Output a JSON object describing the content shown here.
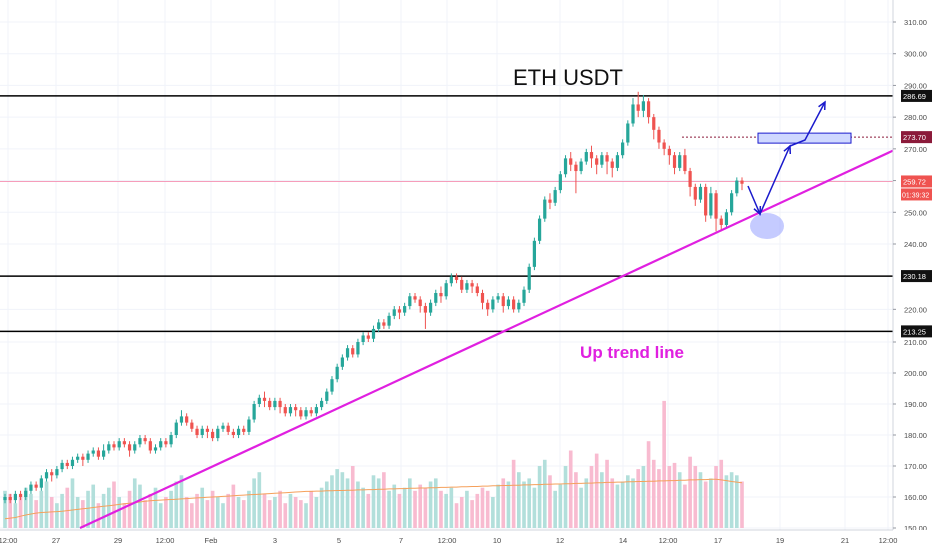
{
  "chart_data": {
    "type": "candlestick",
    "title": "ETH USDT",
    "annotation_label": "Up trend line",
    "ylim": [
      150,
      315
    ],
    "y_ticks": [
      150,
      160,
      170,
      180,
      190,
      200,
      210,
      220,
      240,
      250,
      260,
      270,
      280,
      290,
      300,
      310
    ],
    "x_labels": [
      "12:00",
      "27",
      "29",
      "12:00",
      "Feb",
      "3",
      "5",
      "7",
      "12:00",
      "10",
      "12",
      "14",
      "12:00",
      "17",
      "19",
      "21",
      "12:00"
    ],
    "price_labels": {
      "resistance_high": "286.69",
      "target": "273.70",
      "current": "259.72",
      "countdown": "01:39:32",
      "support_mid": "230.18",
      "support_low": "213.25"
    },
    "levels": {
      "resistance_high": 286.69,
      "target": 273.7,
      "current": 259.72,
      "support_mid": 230.18,
      "support_low": 213.25
    },
    "trend_line": {
      "from": [
        22,
        150
      ],
      "to": [
        130,
        267
      ]
    },
    "candles": [
      [
        159,
        160,
        158,
        161
      ],
      [
        160,
        159,
        158,
        161
      ],
      [
        159,
        161,
        158,
        162
      ],
      [
        161,
        160,
        159,
        162
      ],
      [
        160,
        162,
        159,
        163
      ],
      [
        162,
        164,
        161,
        165
      ],
      [
        164,
        163,
        162,
        165
      ],
      [
        163,
        166,
        162,
        167
      ],
      [
        166,
        168,
        165,
        169
      ],
      [
        168,
        167,
        165,
        169
      ],
      [
        167,
        169,
        166,
        170
      ],
      [
        169,
        171,
        168,
        172
      ],
      [
        171,
        170,
        169,
        172
      ],
      [
        170,
        172,
        169,
        173
      ],
      [
        172,
        173,
        171,
        174
      ],
      [
        173,
        172,
        170,
        174
      ],
      [
        172,
        174,
        171,
        175
      ],
      [
        174,
        175,
        173,
        176
      ],
      [
        175,
        173,
        172,
        176
      ],
      [
        173,
        175,
        172,
        177
      ],
      [
        175,
        177,
        174,
        178
      ],
      [
        177,
        176,
        175,
        178
      ],
      [
        176,
        178,
        175,
        179
      ],
      [
        178,
        177,
        176,
        179
      ],
      [
        177,
        175,
        173,
        178
      ],
      [
        175,
        177,
        174,
        178
      ],
      [
        177,
        179,
        176,
        180
      ],
      [
        179,
        178,
        177,
        180
      ],
      [
        178,
        175,
        174,
        179
      ],
      [
        175,
        176,
        174,
        177
      ],
      [
        176,
        178,
        175,
        179
      ],
      [
        178,
        177,
        176,
        179
      ],
      [
        177,
        180,
        176,
        181
      ],
      [
        180,
        184,
        179,
        185
      ],
      [
        184,
        186,
        183,
        188
      ],
      [
        186,
        184,
        183,
        187
      ],
      [
        184,
        182,
        181,
        185
      ],
      [
        182,
        180,
        179,
        183
      ],
      [
        180,
        182,
        179,
        183
      ],
      [
        182,
        181,
        179,
        183
      ],
      [
        181,
        179,
        178,
        182
      ],
      [
        179,
        182,
        178,
        183
      ],
      [
        182,
        183,
        181,
        184
      ],
      [
        183,
        181,
        180,
        184
      ],
      [
        181,
        180,
        179,
        182
      ],
      [
        180,
        182,
        179,
        183
      ],
      [
        182,
        181,
        180,
        183
      ],
      [
        181,
        185,
        180,
        186
      ],
      [
        185,
        190,
        184,
        191
      ],
      [
        190,
        192,
        189,
        193
      ],
      [
        192,
        191,
        189,
        194
      ],
      [
        191,
        189,
        188,
        192
      ],
      [
        189,
        191,
        188,
        192
      ],
      [
        191,
        189,
        187,
        192
      ],
      [
        189,
        187,
        186,
        190
      ],
      [
        187,
        189,
        186,
        190
      ],
      [
        189,
        188,
        186,
        190
      ],
      [
        188,
        186,
        185,
        189
      ],
      [
        186,
        188,
        185,
        189
      ],
      [
        188,
        187,
        186,
        189
      ],
      [
        187,
        189,
        186,
        190
      ],
      [
        189,
        191,
        188,
        192
      ],
      [
        191,
        194,
        190,
        195
      ],
      [
        194,
        198,
        193,
        199
      ],
      [
        198,
        202,
        197,
        203
      ],
      [
        202,
        205,
        201,
        206
      ],
      [
        205,
        208,
        204,
        209
      ],
      [
        208,
        206,
        205,
        209
      ],
      [
        206,
        210,
        205,
        211
      ],
      [
        210,
        212,
        209,
        213
      ],
      [
        212,
        211,
        210,
        213
      ],
      [
        211,
        214,
        210,
        215
      ],
      [
        214,
        216,
        213,
        217
      ],
      [
        216,
        215,
        214,
        217
      ],
      [
        215,
        218,
        214,
        219
      ],
      [
        218,
        220,
        217,
        221
      ],
      [
        220,
        219,
        217,
        221
      ],
      [
        219,
        221,
        218,
        222
      ],
      [
        221,
        224,
        220,
        225
      ],
      [
        224,
        223,
        222,
        225
      ],
      [
        223,
        221,
        219,
        224
      ],
      [
        221,
        219,
        214,
        222
      ],
      [
        219,
        222,
        218,
        223
      ],
      [
        222,
        225,
        221,
        226
      ],
      [
        225,
        224,
        222,
        227
      ],
      [
        224,
        228,
        223,
        229
      ],
      [
        228,
        230,
        227,
        231
      ],
      [
        230,
        229,
        228,
        231
      ],
      [
        229,
        226,
        225,
        230
      ],
      [
        226,
        228,
        225,
        229
      ],
      [
        228,
        227,
        225,
        229
      ],
      [
        227,
        225,
        224,
        228
      ],
      [
        225,
        222,
        220,
        226
      ],
      [
        222,
        220,
        218,
        223
      ],
      [
        220,
        223,
        219,
        224
      ],
      [
        223,
        224,
        222,
        225
      ],
      [
        224,
        221,
        219,
        225
      ],
      [
        221,
        223,
        220,
        224
      ],
      [
        223,
        220,
        219,
        224
      ],
      [
        220,
        222,
        219,
        223
      ],
      [
        222,
        226,
        221,
        227
      ],
      [
        226,
        233,
        225,
        234
      ],
      [
        233,
        241,
        232,
        242
      ],
      [
        241,
        248,
        240,
        249
      ],
      [
        248,
        254,
        247,
        255
      ],
      [
        254,
        253,
        251,
        256
      ],
      [
        253,
        257,
        252,
        258
      ],
      [
        257,
        262,
        256,
        263
      ],
      [
        262,
        267,
        261,
        268
      ],
      [
        267,
        265,
        263,
        269
      ],
      [
        265,
        263,
        256,
        266
      ],
      [
        263,
        266,
        262,
        267
      ],
      [
        266,
        269,
        265,
        270
      ],
      [
        269,
        267,
        264,
        271
      ],
      [
        267,
        265,
        262,
        268
      ],
      [
        265,
        268,
        264,
        269
      ],
      [
        268,
        266,
        262,
        269
      ],
      [
        266,
        264,
        261,
        267
      ],
      [
        264,
        268,
        263,
        269
      ],
      [
        268,
        272,
        267,
        273
      ],
      [
        272,
        278,
        271,
        279
      ],
      [
        278,
        284,
        277,
        286
      ],
      [
        284,
        282,
        280,
        288
      ],
      [
        282,
        285,
        280,
        287
      ],
      [
        285,
        280,
        278,
        286
      ],
      [
        280,
        276,
        273,
        281
      ],
      [
        276,
        272,
        270,
        277
      ],
      [
        272,
        270,
        268,
        273
      ],
      [
        270,
        268,
        265,
        271
      ],
      [
        268,
        264,
        262,
        269
      ],
      [
        264,
        268,
        263,
        269
      ],
      [
        268,
        263,
        262,
        270
      ],
      [
        263,
        258,
        255,
        264
      ],
      [
        258,
        254,
        252,
        259
      ],
      [
        254,
        258,
        253,
        259
      ],
      [
        258,
        249,
        247,
        259
      ],
      [
        249,
        256,
        248,
        258
      ],
      [
        256,
        248,
        244,
        257
      ],
      [
        248,
        246,
        244,
        249
      ],
      [
        246,
        250,
        245,
        251
      ],
      [
        250,
        256,
        249,
        257
      ],
      [
        256,
        260,
        255,
        261
      ],
      [
        260,
        259,
        257,
        261
      ]
    ],
    "volumes": [
      162,
      161,
      158,
      160,
      163,
      161,
      159,
      162,
      165,
      160,
      158,
      161,
      163,
      166,
      160,
      159,
      162,
      164,
      158,
      161,
      163,
      165,
      160,
      158,
      162,
      166,
      164,
      159,
      161,
      163,
      158,
      160,
      162,
      165,
      167,
      160,
      158,
      161,
      163,
      159,
      162,
      160,
      158,
      161,
      164,
      160,
      159,
      162,
      166,
      168,
      161,
      159,
      160,
      162,
      158,
      161,
      160,
      159,
      158,
      162,
      160,
      163,
      165,
      167,
      169,
      168,
      166,
      170,
      165,
      163,
      161,
      167,
      166,
      168,
      162,
      164,
      161,
      163,
      166,
      162,
      164,
      163,
      165,
      166,
      162,
      161,
      163,
      158,
      160,
      162,
      159,
      161,
      163,
      162,
      160,
      164,
      166,
      165,
      172,
      168,
      165,
      166,
      163,
      170,
      172,
      167,
      162,
      164,
      170,
      175,
      168,
      163,
      166,
      170,
      174,
      168,
      172,
      166,
      164,
      165,
      167,
      166,
      169,
      170,
      178,
      172,
      169,
      191,
      170,
      171,
      168,
      164,
      173,
      170,
      168,
      165,
      166,
      170,
      172,
      167,
      168,
      167,
      165
    ],
    "moving_average": [
      153,
      153.2,
      153.4,
      153.8,
      154.2,
      154.5,
      154.8,
      155,
      155.1,
      155.2,
      155.3,
      155.4,
      155.6,
      155.8,
      156,
      156.2,
      156.4,
      156.6,
      156.8,
      157,
      157.2,
      157.4,
      157.6,
      157.8,
      158,
      158.2,
      158.4,
      158.6,
      158.8,
      158.9,
      159,
      159.1,
      159.2,
      159.3,
      159.4,
      159.5,
      159.6,
      159.7,
      159.8,
      159.9,
      160,
      160.1,
      160.2,
      160.3,
      160.4,
      160.5,
      160.6,
      160.7,
      160.8,
      160.9,
      161,
      161.1,
      161.2,
      161.3,
      161.4,
      161.5,
      161.6,
      161.7,
      161.8,
      161.8,
      161.9,
      161.9,
      162,
      162,
      162.1,
      162.1,
      162.2,
      162.2,
      162.3,
      162.3,
      162.4,
      162.4,
      162.5,
      162.5,
      162.6,
      162.6,
      162.7,
      162.7,
      162.8,
      162.8,
      162.9,
      162.9,
      163,
      163,
      163.1,
      163.1,
      163.2,
      163.2,
      163.3,
      163.3,
      163.4,
      163.4,
      163.5,
      163.5,
      163.6,
      163.6,
      163.7,
      163.7,
      163.8,
      163.8,
      163.9,
      163.9,
      164,
      164,
      164.1,
      164.1,
      164.2,
      164.2,
      164.3,
      164.3,
      164.4,
      164.4,
      164.5,
      164.5,
      164.6,
      164.6,
      164.7,
      164.7,
      164.8,
      164.8,
      164.9,
      164.9,
      165,
      165,
      165.1,
      165.1,
      165.2,
      165.2,
      165.3,
      165.3,
      165.4,
      165.4,
      165.5,
      165.5,
      165.6,
      165.6,
      165.7,
      165.7,
      165.5,
      165.3,
      165,
      164.8,
      164.6
    ],
    "colors": {
      "up": "#26a69a",
      "down": "#ef5350",
      "volume_up": "#b2dfdb",
      "volume_down": "#f8bbd0",
      "moving_average": "#f5a05b",
      "trend_line": "#e020e0",
      "level_line": "#000000",
      "target_line": "#8b1a3a",
      "current_line": "#f48fb1",
      "projection": "#1a1acc",
      "target_zone_fill": "#cfd8ff",
      "highlight_circle": "#9fa8ff",
      "label_red": "#c62828",
      "label_dark": "#263238"
    },
    "grid": true
  }
}
